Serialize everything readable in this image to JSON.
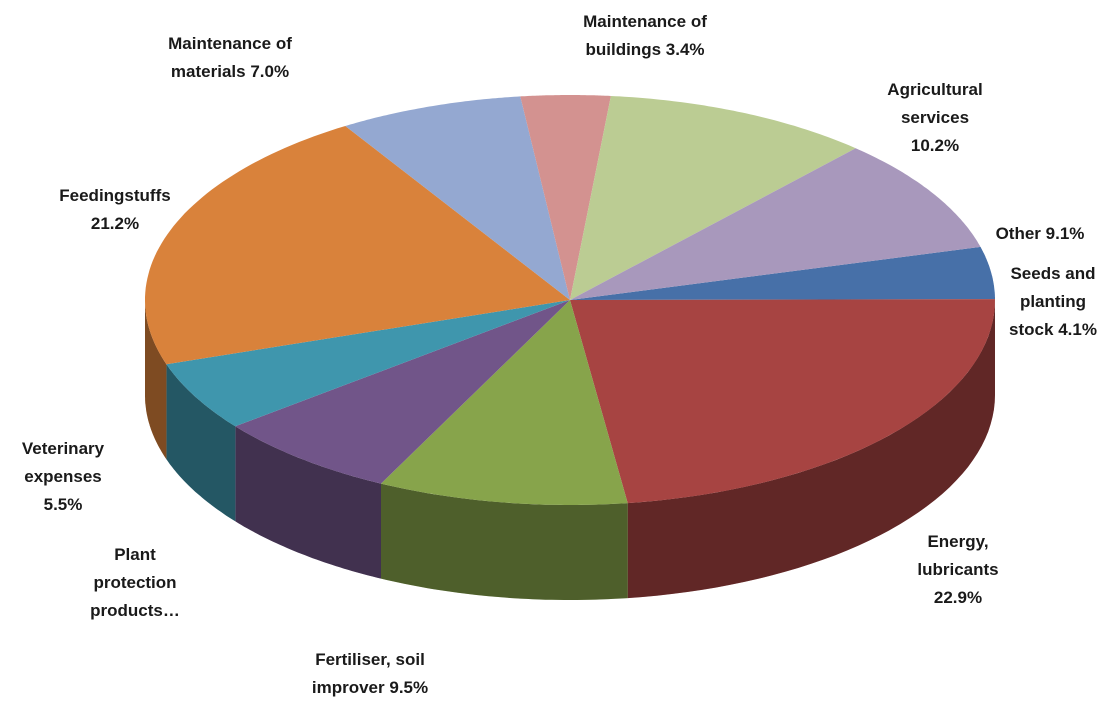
{
  "chart_data": {
    "type": "pie3d",
    "categories": [
      "Seeds and planting stock",
      "Energy, lubricants",
      "Fertiliser, soil improver",
      "Plant protection products…",
      "Veterinary expenses",
      "Feedingstuffs",
      "Maintenance of materials",
      "Maintenance of buildings",
      "Agricultural services",
      "Other"
    ],
    "values": [
      4.1,
      22.9,
      9.5,
      7.1,
      5.5,
      21.2,
      7.0,
      3.4,
      10.2,
      9.1
    ],
    "value_labels": [
      "4.1%",
      "22.9%",
      "9.5%",
      null,
      "5.5%",
      "21.2%",
      "7.0%",
      "3.4%",
      "10.2%",
      "9.1%"
    ],
    "colors": [
      "#4770a8",
      "#a74442",
      "#87a44b",
      "#715589",
      "#3f96ad",
      "#d9823b",
      "#94a8d1",
      "#d39290",
      "#bbcc93",
      "#a898bc"
    ]
  }
}
